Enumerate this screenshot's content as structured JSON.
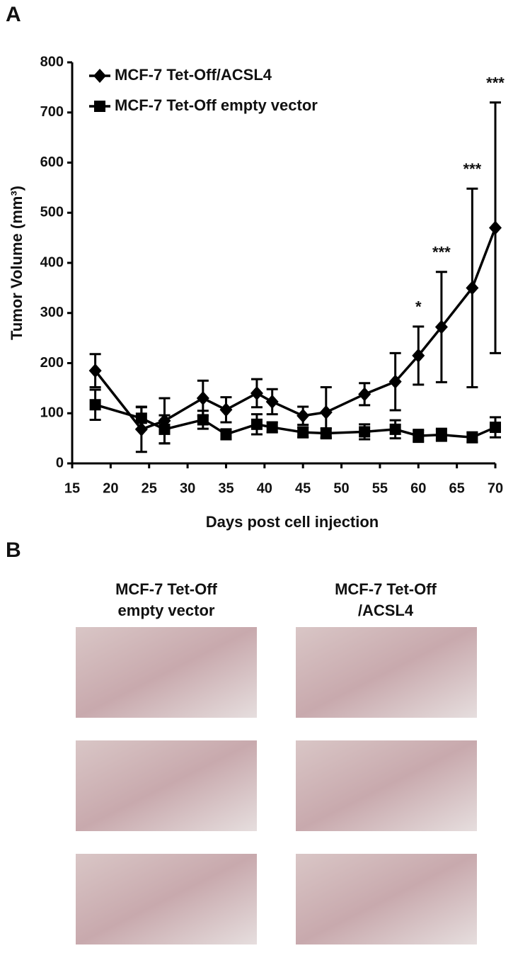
{
  "panel_labels": [
    "A",
    "B"
  ],
  "chart_data": {
    "type": "line",
    "y_label": "Tumor Volume (mm³)",
    "x_label": "Days post cell injection",
    "x": [
      18,
      24,
      27,
      32,
      35,
      39,
      41,
      45,
      48,
      53,
      57,
      60,
      63,
      67,
      70
    ],
    "xlim": [
      15,
      70
    ],
    "xticks": [
      15,
      20,
      25,
      30,
      35,
      40,
      45,
      50,
      55,
      60,
      65,
      70
    ],
    "ylim": [
      0,
      800
    ],
    "yticks": [
      0,
      100,
      200,
      300,
      400,
      500,
      600,
      700,
      800
    ],
    "legend": "top-left",
    "series": [
      {
        "name": "MCF-7 Tet-Off/ACSL4",
        "color": "#000000",
        "marker": "diamond",
        "values": [
          185,
          68,
          85,
          130,
          107,
          140,
          123,
          95,
          102,
          138,
          163,
          215,
          272,
          350,
          470
        ],
        "errors": [
          33,
          45,
          45,
          35,
          25,
          28,
          25,
          18,
          50,
          22,
          57,
          58,
          110,
          198,
          250
        ]
      },
      {
        "name": "MCF-7 Tet-Off empty vector",
        "color": "#000000",
        "marker": "square",
        "values": [
          117,
          90,
          68,
          87,
          58,
          78,
          72,
          62,
          60,
          63,
          68,
          55,
          57,
          52,
          72
        ],
        "errors": [
          30,
          22,
          28,
          18,
          10,
          20,
          10,
          10,
          10,
          15,
          18,
          12,
          12,
          10,
          20
        ]
      }
    ],
    "annotations": [
      {
        "x": 60,
        "text": "*"
      },
      {
        "x": 63,
        "text": "***"
      },
      {
        "x": 67,
        "text": "***"
      },
      {
        "x": 70,
        "text": "***"
      }
    ]
  },
  "photo_columns": [
    [
      "MCF-7 Tet-Off",
      "empty vector"
    ],
    [
      "MCF-7 Tet-Off",
      "/ACSL4"
    ]
  ]
}
